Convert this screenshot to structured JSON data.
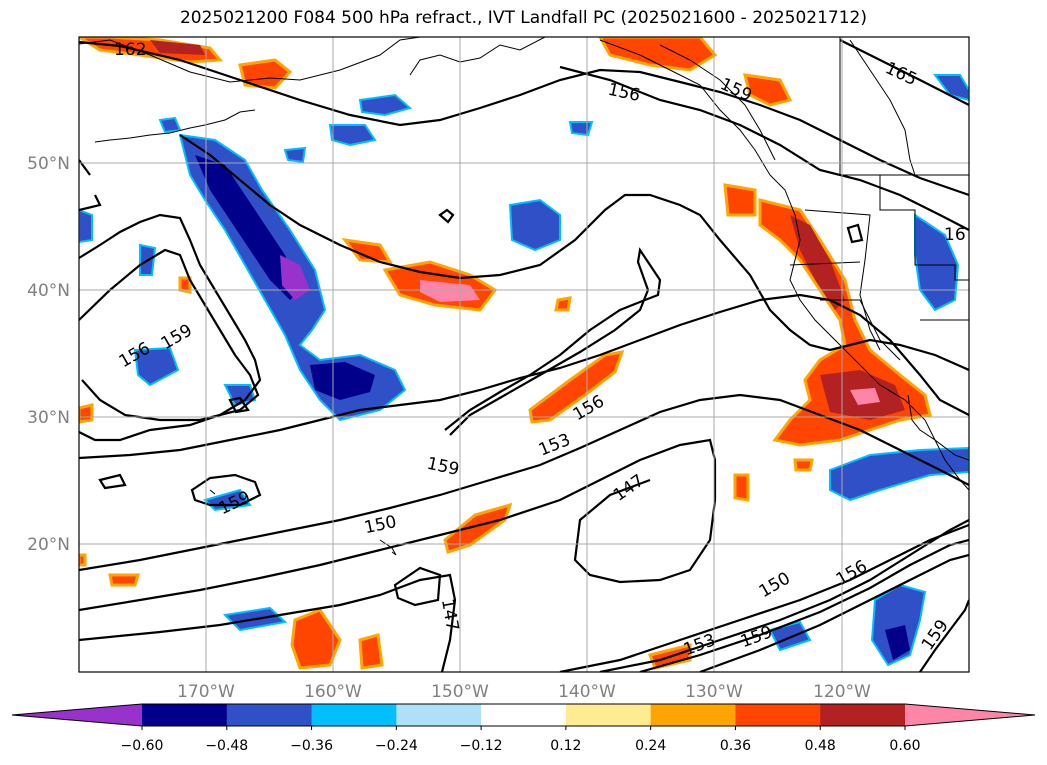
{
  "title": "2025021200 F084 500 hPa refract., IVT Landfall PC (2025021600 - 2025021712)",
  "lat_labels": [
    "50°N",
    "40°N",
    "30°N",
    "20°N"
  ],
  "lon_labels": [
    "170°W",
    "160°W",
    "150°W",
    "140°W",
    "130°W",
    "120°W"
  ],
  "contour_labels": [
    "162",
    "156",
    "159",
    "165",
    "156",
    "159",
    "159",
    "156",
    "153",
    "147",
    "150",
    "159",
    "150",
    "156",
    "147",
    "153",
    "159",
    "159",
    "16"
  ],
  "colorbar": {
    "colors": [
      "#9932cc",
      "#00008b",
      "#3050c8",
      "#00bfff",
      "#b0e0f8",
      "#ffffff",
      "#ffeb90",
      "#ffa500",
      "#ff4500",
      "#b22222",
      "#ff85a8"
    ],
    "ticks": [
      "−0.60",
      "−0.48",
      "−0.36",
      "−0.24",
      "−0.12",
      "0.12",
      "0.24",
      "0.36",
      "0.48",
      "0.60"
    ]
  },
  "colors": {
    "coast": "#000000",
    "contour": "#000000",
    "grid": "#a9a9a9",
    "tick_text": "#808080"
  }
}
